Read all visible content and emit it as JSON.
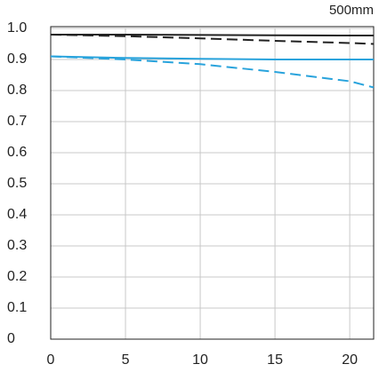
{
  "chart_data": {
    "type": "line",
    "title": "500mm",
    "x": [
      0,
      5,
      10,
      15,
      20,
      21.6
    ],
    "series": [
      {
        "color": "#222222",
        "dash": false,
        "values": [
          0.98,
          0.98,
          0.979,
          0.978,
          0.977,
          0.977
        ]
      },
      {
        "color": "#222222",
        "dash": true,
        "values": [
          0.98,
          0.975,
          0.968,
          0.96,
          0.953,
          0.95
        ]
      },
      {
        "color": "#29a3dc",
        "dash": false,
        "values": [
          0.91,
          0.905,
          0.902,
          0.9,
          0.9,
          0.9
        ]
      },
      {
        "color": "#29a3dc",
        "dash": true,
        "values": [
          0.91,
          0.9,
          0.885,
          0.86,
          0.83,
          0.81
        ]
      }
    ],
    "xlim": [
      0,
      21.6
    ],
    "xticks": [
      0,
      5,
      10,
      15,
      20
    ],
    "ylim": [
      0,
      1
    ],
    "yticks": [
      0,
      0.1,
      0.2,
      0.3,
      0.4,
      0.5,
      0.6,
      0.7,
      0.8,
      0.9,
      {
        "value": 1,
        "label": "1.0"
      }
    ],
    "grid": true
  }
}
